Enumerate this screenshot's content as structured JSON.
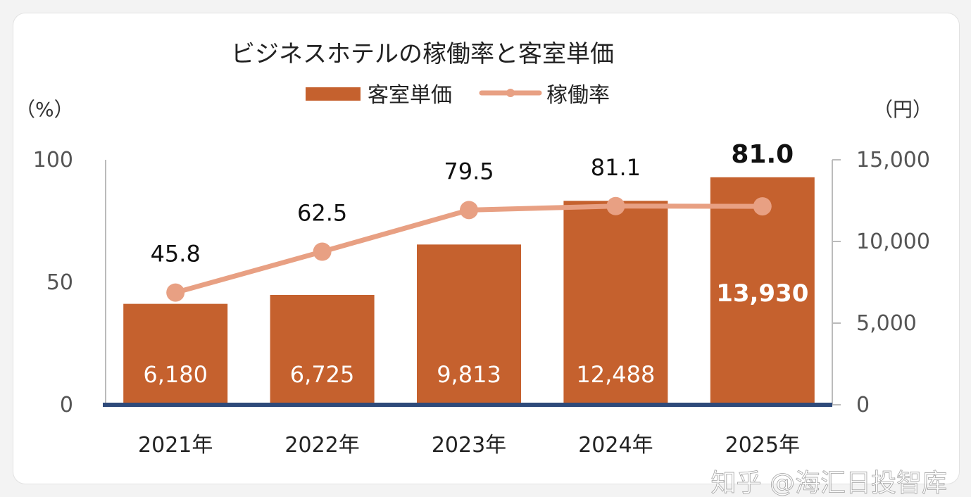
{
  "chart_data": {
    "type": "bar+line",
    "title": "ビジネスホテルの稼働率と客室単価",
    "categories": [
      "2021年",
      "2022年",
      "2023年",
      "2024年",
      "2025年"
    ],
    "series": [
      {
        "name": "客室単価",
        "type": "bar",
        "axis": "right",
        "color": "#C5612E",
        "values": [
          6180,
          6725,
          9813,
          12488,
          13930
        ],
        "labels": [
          "6,180",
          "6,725",
          "9,813",
          "12,488",
          "13,930"
        ]
      },
      {
        "name": "稼働率",
        "type": "line",
        "axis": "left",
        "color": "#E8A083",
        "values": [
          45.8,
          62.5,
          79.5,
          81.1,
          81.0
        ],
        "labels": [
          "45.8",
          "62.5",
          "79.5",
          "81.1",
          "81.0"
        ]
      }
    ],
    "left_axis": {
      "unit": "（%）",
      "ylim": [
        0,
        100
      ],
      "ticks": [
        "0",
        "50",
        "100"
      ]
    },
    "right_axis": {
      "unit": "（円）",
      "ylim": [
        0,
        15000
      ],
      "ticks": [
        "0",
        "5,000",
        "10,000",
        "15,000"
      ]
    },
    "legend": "top-center",
    "grid": false,
    "axis_color": "#2E4A7A"
  },
  "watermark": "知乎 @海汇日投智库"
}
